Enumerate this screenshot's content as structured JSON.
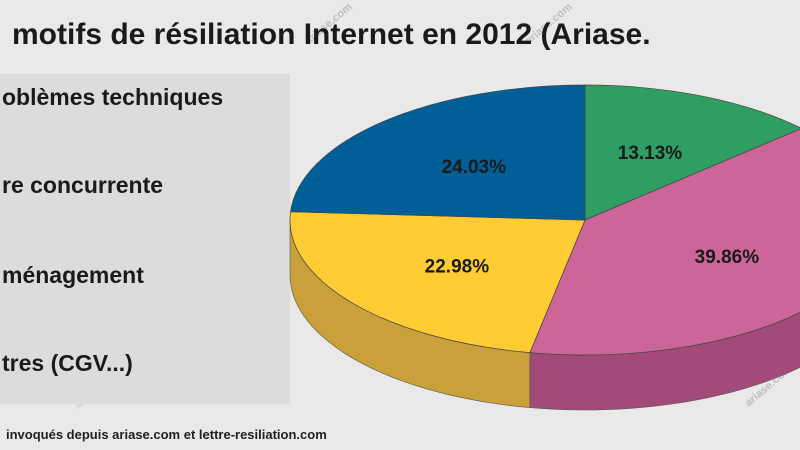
{
  "chart_data": {
    "type": "pie",
    "title": "motifs de résiliation Internet en 2012 (Ariase.",
    "categories": [
      "oblèmes techniques",
      "re concurrente",
      "ménagement",
      "tres (CGV...)"
    ],
    "values": [
      24.03,
      22.98,
      39.86,
      13.13
    ],
    "data_labels": [
      "24.03%",
      "22.98%",
      "39.86%",
      "13.13%"
    ],
    "slice_order_clockwise_from_top": [
      3,
      2,
      1,
      0
    ],
    "colors": [
      "#005f96",
      "#ffcc33",
      "#cc6699",
      "#2e9e63"
    ],
    "side_colors": [
      "#003f66",
      "#c9a03a",
      "#a44a78",
      "#1f7a4a"
    ],
    "legend_placement": "left"
  },
  "footer_text": "invoqués depuis ariase.com et lettre-resiliation.com",
  "watermark": {
    "main": "Ariase.com",
    "small": "ariase.com"
  }
}
